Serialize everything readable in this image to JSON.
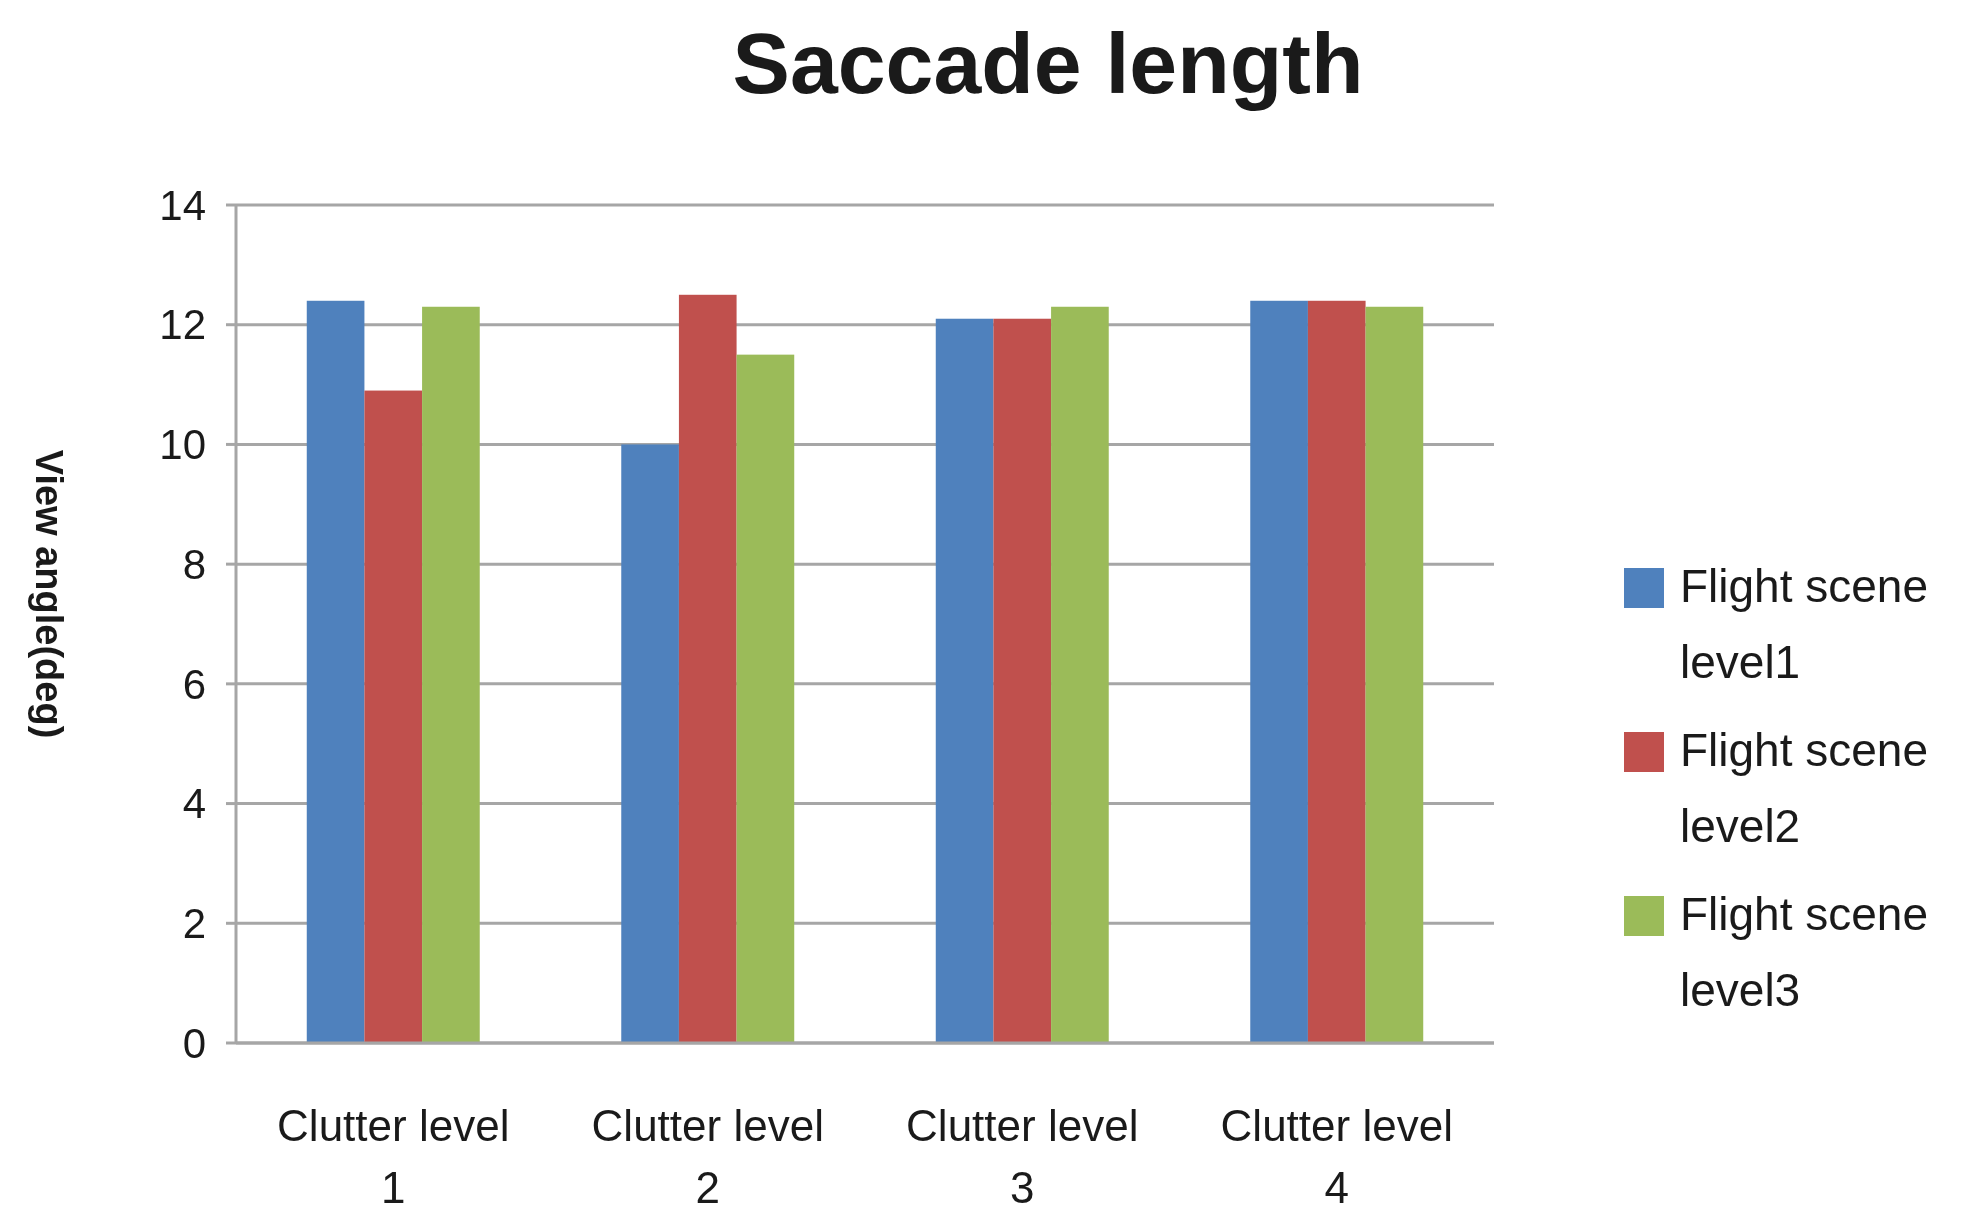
{
  "chart_data": {
    "type": "bar",
    "title": "Saccade length",
    "ylabel": "View angle(deg)",
    "categories": [
      "Clutter level 1",
      "Clutter level 2",
      "Clutter level 3",
      "Clutter level 4"
    ],
    "series": [
      {
        "name": "Flight scene level1",
        "color": "#4f81bd",
        "values": [
          12.4,
          10.0,
          12.1,
          12.4
        ]
      },
      {
        "name": "Flight scene level2",
        "color": "#c0504d",
        "values": [
          10.9,
          12.5,
          12.1,
          12.4
        ]
      },
      {
        "name": "Flight scene level3",
        "color": "#9bbb59",
        "values": [
          12.3,
          11.5,
          12.3,
          12.3
        ]
      }
    ],
    "ylim": [
      0,
      14
    ],
    "yticks": [
      0,
      2,
      4,
      6,
      8,
      10,
      12,
      14
    ],
    "grid": "y",
    "legend": "right"
  }
}
